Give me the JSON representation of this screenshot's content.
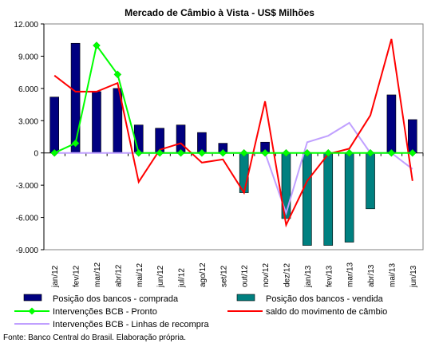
{
  "chart_data": {
    "type": "bar",
    "title": "Mercado de Câmbio à Vista - US$ Milhões",
    "xlabel": "",
    "ylabel": "",
    "ylim": [
      -9000,
      12000
    ],
    "yticks": [
      -9000,
      -6000,
      -3000,
      0,
      3000,
      6000,
      9000,
      12000
    ],
    "ytick_labels": [
      "-9.000",
      "-6.000",
      "-3.000",
      "0",
      "3.000",
      "6.000",
      "9.000",
      "12.000"
    ],
    "grid": false,
    "legend_position": "bottom",
    "categories": [
      "jan/12",
      "fev/12",
      "mar/12",
      "abr/12",
      "mai/12",
      "jun/12",
      "jul/12",
      "ago/12",
      "set/12",
      "out/12",
      "nov/12",
      "dez/12",
      "jan/13",
      "fev/13",
      "mar/13",
      "abr/13",
      "mai/13",
      "jun/13"
    ],
    "series": [
      {
        "name": "Posição dos bancos - comprada",
        "type": "bar",
        "color": "#000080",
        "values": [
          5200,
          10200,
          5700,
          6000,
          2600,
          2300,
          2600,
          1900,
          900,
          0,
          1000,
          0,
          0,
          0,
          0,
          0,
          5400,
          3100
        ]
      },
      {
        "name": "Posição dos bancos - vendida",
        "type": "bar",
        "color": "#008080",
        "values": [
          0,
          0,
          0,
          0,
          0,
          0,
          0,
          0,
          0,
          -3700,
          0,
          -6100,
          -8600,
          -8600,
          -8300,
          -5200,
          0,
          0
        ]
      },
      {
        "name": "Intervenções BCB - Pronto",
        "type": "line",
        "color": "#00ff00",
        "values": [
          0,
          900,
          10000,
          7300,
          0,
          0,
          0,
          0,
          0,
          0,
          0,
          0,
          0,
          0,
          0,
          0,
          0,
          0
        ]
      },
      {
        "name": "saldo do movimento de câmbio",
        "type": "line",
        "color": "#ff0000",
        "values": [
          7200,
          5700,
          5700,
          6500,
          -2700,
          300,
          900,
          -900,
          -600,
          -3700,
          4800,
          -6700,
          -2600,
          -100,
          400,
          3500,
          10600,
          -2600
        ]
      },
      {
        "name": "Intervenções BCB - Linhas de recompra",
        "type": "line",
        "color": "#c0a0ff",
        "values": [
          0,
          0,
          0,
          0,
          0,
          0,
          0,
          0,
          0,
          0,
          0,
          -5600,
          1000,
          1600,
          2800,
          0,
          0,
          -1500
        ]
      }
    ]
  },
  "source_note": "Fonte: Banco Central do Brasil.  Elaboração própria."
}
